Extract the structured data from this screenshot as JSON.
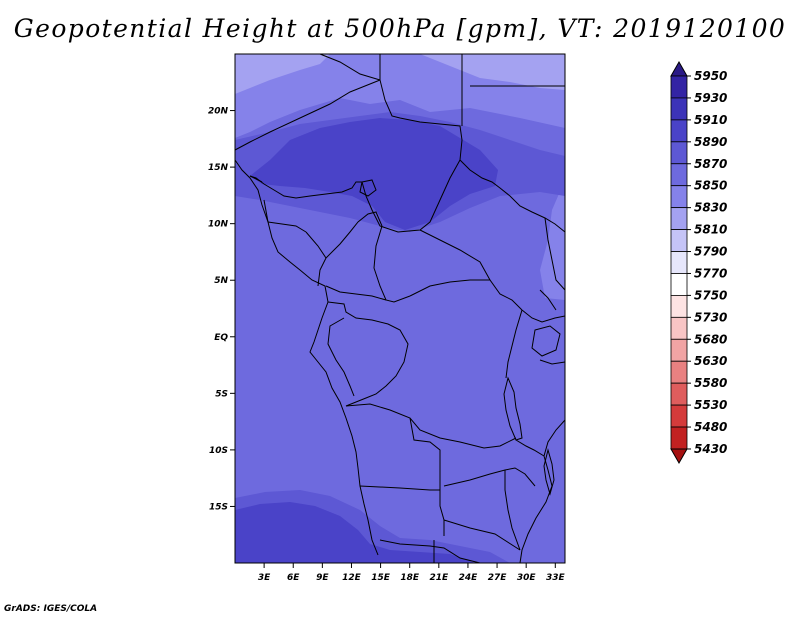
{
  "title": "Geopotential Height at 500hPa [gpm], VT: 2019120100",
  "credit": "GrADS: IGES/COLA",
  "map": {
    "projection": "lat-lon",
    "lon_range": [
      0,
      34
    ],
    "lat_range": [
      -20,
      25
    ],
    "lat_ticks": [
      {
        "lat": 20,
        "label": "20N"
      },
      {
        "lat": 15,
        "label": "15N"
      },
      {
        "lat": 10,
        "label": "10N"
      },
      {
        "lat": 5,
        "label": "5N"
      },
      {
        "lat": 0,
        "label": "EQ"
      },
      {
        "lat": -5,
        "label": "5S"
      },
      {
        "lat": -10,
        "label": "10S"
      },
      {
        "lat": -15,
        "label": "15S"
      }
    ],
    "lon_ticks": [
      {
        "lon": 3,
        "label": "3E"
      },
      {
        "lon": 6,
        "label": "6E"
      },
      {
        "lon": 9,
        "label": "9E"
      },
      {
        "lon": 12,
        "label": "12E"
      },
      {
        "lon": 15,
        "label": "15E"
      },
      {
        "lon": 18,
        "label": "18E"
      },
      {
        "lon": 21,
        "label": "21E"
      },
      {
        "lon": 24,
        "label": "24E"
      },
      {
        "lon": 27,
        "label": "27E"
      },
      {
        "lon": 30,
        "label": "30E"
      },
      {
        "lon": 33,
        "label": "33E"
      }
    ]
  },
  "colorbar": {
    "levels": [
      "5950",
      "5930",
      "5910",
      "5890",
      "5870",
      "5850",
      "5830",
      "5810",
      "5790",
      "5770",
      "5750",
      "5730",
      "5680",
      "5630",
      "5580",
      "5530",
      "5480",
      "5430"
    ],
    "colors": [
      "#2a1a86",
      "#3324a4",
      "#3c33b8",
      "#4a43c8",
      "#5d58d4",
      "#6e6ade",
      "#8582ea",
      "#a4a2f1",
      "#c5c4f7",
      "#e6e6fb",
      "#ffffff",
      "#fde3e3",
      "#f8c5c5",
      "#f1a4a4",
      "#e98181",
      "#df5d5d",
      "#d43b3b",
      "#c22121",
      "#a51010"
    ]
  },
  "field_colors": {
    "c5850": "#6e6ade",
    "c5870": "#5d58d4",
    "c5890": "#4a43c8",
    "c5830": "#8582ea",
    "c5810": "#a4a2f1"
  }
}
